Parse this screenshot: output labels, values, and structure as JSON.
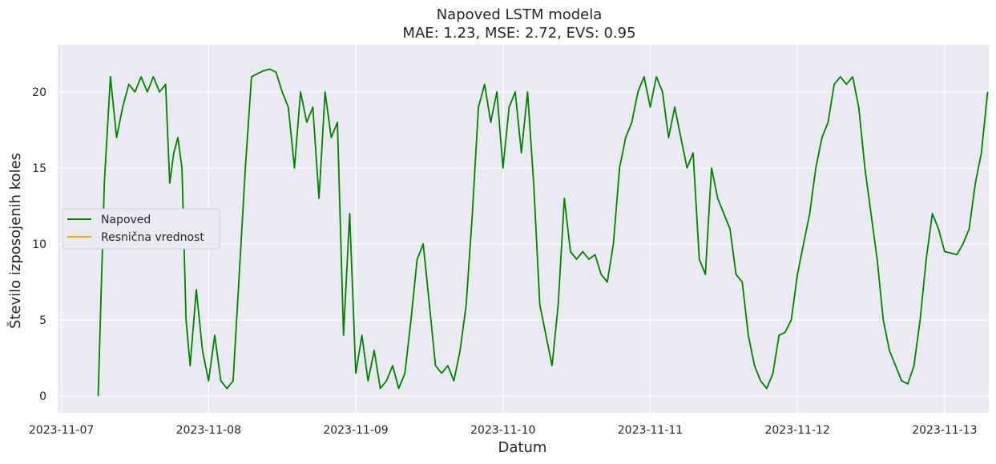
{
  "chart_data": {
    "type": "line",
    "title": "Napoved LSTM modela",
    "subtitle": "MAE: 1.23, MSE: 2.72, EVS: 0.95",
    "xlabel": "Datum",
    "ylabel": "Število izposojenih koles",
    "x_tick_labels": [
      "2023-11-07",
      "2023-11-08",
      "2023-11-09",
      "2023-11-10",
      "2023-11-11",
      "2023-11-12",
      "2023-11-13"
    ],
    "y_ticks": [
      0,
      5,
      10,
      15,
      20
    ],
    "xlim": [
      "2023-11-06 23:24",
      "2023-11-13 07:12"
    ],
    "ylim": [
      -1.1,
      23.1
    ],
    "grid": true,
    "legend_position": "center-left",
    "background_color": "#eaeaf2",
    "grid_color": "#ffffff",
    "series": [
      {
        "name": "Napoved",
        "color": "#008000",
        "points": [
          [
            "2023-11-07 06:00",
            0
          ],
          [
            "2023-11-07 07:00",
            14
          ],
          [
            "2023-11-07 08:00",
            21
          ],
          [
            "2023-11-07 09:00",
            17
          ],
          [
            "2023-11-07 10:00",
            19
          ],
          [
            "2023-11-07 11:00",
            20.5
          ],
          [
            "2023-11-07 12:00",
            20
          ],
          [
            "2023-11-07 13:00",
            21
          ],
          [
            "2023-11-07 14:00",
            20
          ],
          [
            "2023-11-07 15:00",
            21
          ],
          [
            "2023-11-07 16:00",
            20
          ],
          [
            "2023-11-07 17:00",
            20.5
          ],
          [
            "2023-11-07 17:40",
            14
          ],
          [
            "2023-11-07 18:20",
            16
          ],
          [
            "2023-11-07 19:00",
            17
          ],
          [
            "2023-11-07 19:40",
            15
          ],
          [
            "2023-11-07 20:20",
            5
          ],
          [
            "2023-11-07 21:00",
            2
          ],
          [
            "2023-11-07 22:00",
            7
          ],
          [
            "2023-11-07 23:00",
            3
          ],
          [
            "2023-11-08 00:00",
            1
          ],
          [
            "2023-11-08 01:00",
            4
          ],
          [
            "2023-11-08 02:00",
            1
          ],
          [
            "2023-11-08 03:00",
            0.5
          ],
          [
            "2023-11-08 04:00",
            1
          ],
          [
            "2023-11-08 05:00",
            8
          ],
          [
            "2023-11-08 06:00",
            15
          ],
          [
            "2023-11-08 07:00",
            21
          ],
          [
            "2023-11-08 08:00",
            21.2
          ],
          [
            "2023-11-08 09:00",
            21.4
          ],
          [
            "2023-11-08 10:00",
            21.5
          ],
          [
            "2023-11-08 11:00",
            21.3
          ],
          [
            "2023-11-08 12:00",
            20
          ],
          [
            "2023-11-08 13:00",
            19
          ],
          [
            "2023-11-08 14:00",
            15
          ],
          [
            "2023-11-08 15:00",
            20
          ],
          [
            "2023-11-08 16:00",
            18
          ],
          [
            "2023-11-08 17:00",
            19
          ],
          [
            "2023-11-08 18:00",
            13
          ],
          [
            "2023-11-08 19:00",
            20
          ],
          [
            "2023-11-08 20:00",
            17
          ],
          [
            "2023-11-08 21:00",
            18
          ],
          [
            "2023-11-08 22:00",
            4
          ],
          [
            "2023-11-08 23:00",
            12
          ],
          [
            "2023-11-09 00:00",
            1.5
          ],
          [
            "2023-11-09 01:00",
            4
          ],
          [
            "2023-11-09 02:00",
            1
          ],
          [
            "2023-11-09 03:00",
            3
          ],
          [
            "2023-11-09 04:00",
            0.5
          ],
          [
            "2023-11-09 05:00",
            1
          ],
          [
            "2023-11-09 06:00",
            2
          ],
          [
            "2023-11-09 07:00",
            0.5
          ],
          [
            "2023-11-09 08:00",
            1.5
          ],
          [
            "2023-11-09 09:00",
            5
          ],
          [
            "2023-11-09 10:00",
            9
          ],
          [
            "2023-11-09 11:00",
            10
          ],
          [
            "2023-11-09 12:00",
            6
          ],
          [
            "2023-11-09 13:00",
            2
          ],
          [
            "2023-11-09 14:00",
            1.5
          ],
          [
            "2023-11-09 15:00",
            2
          ],
          [
            "2023-11-09 16:00",
            1
          ],
          [
            "2023-11-09 17:00",
            3
          ],
          [
            "2023-11-09 18:00",
            6
          ],
          [
            "2023-11-09 19:00",
            12
          ],
          [
            "2023-11-09 20:00",
            19
          ],
          [
            "2023-11-09 21:00",
            20.5
          ],
          [
            "2023-11-09 22:00",
            18
          ],
          [
            "2023-11-09 23:00",
            20
          ],
          [
            "2023-11-10 00:00",
            15
          ],
          [
            "2023-11-10 01:00",
            19
          ],
          [
            "2023-11-10 02:00",
            20
          ],
          [
            "2023-11-10 03:00",
            16
          ],
          [
            "2023-11-10 04:00",
            20
          ],
          [
            "2023-11-10 05:00",
            14
          ],
          [
            "2023-11-10 06:00",
            6
          ],
          [
            "2023-11-10 07:00",
            4
          ],
          [
            "2023-11-10 08:00",
            2
          ],
          [
            "2023-11-10 09:00",
            6
          ],
          [
            "2023-11-10 10:00",
            13
          ],
          [
            "2023-11-10 11:00",
            9.5
          ],
          [
            "2023-11-10 12:00",
            9
          ],
          [
            "2023-11-10 13:00",
            9.5
          ],
          [
            "2023-11-10 14:00",
            9
          ],
          [
            "2023-11-10 15:00",
            9.3
          ],
          [
            "2023-11-10 16:00",
            8
          ],
          [
            "2023-11-10 17:00",
            7.5
          ],
          [
            "2023-11-10 18:00",
            10
          ],
          [
            "2023-11-10 19:00",
            15
          ],
          [
            "2023-11-10 20:00",
            17
          ],
          [
            "2023-11-10 21:00",
            18
          ],
          [
            "2023-11-10 22:00",
            20
          ],
          [
            "2023-11-10 23:00",
            21
          ],
          [
            "2023-11-11 00:00",
            19
          ],
          [
            "2023-11-11 01:00",
            21
          ],
          [
            "2023-11-11 02:00",
            20
          ],
          [
            "2023-11-11 03:00",
            17
          ],
          [
            "2023-11-11 04:00",
            19
          ],
          [
            "2023-11-11 05:00",
            17
          ],
          [
            "2023-11-11 06:00",
            15
          ],
          [
            "2023-11-11 07:00",
            16
          ],
          [
            "2023-11-11 08:00",
            9
          ],
          [
            "2023-11-11 09:00",
            8
          ],
          [
            "2023-11-11 10:00",
            15
          ],
          [
            "2023-11-11 11:00",
            13
          ],
          [
            "2023-11-11 12:00",
            12
          ],
          [
            "2023-11-11 13:00",
            11
          ],
          [
            "2023-11-11 14:00",
            8
          ],
          [
            "2023-11-11 15:00",
            7.5
          ],
          [
            "2023-11-11 16:00",
            4
          ],
          [
            "2023-11-11 17:00",
            2
          ],
          [
            "2023-11-11 18:00",
            1
          ],
          [
            "2023-11-11 19:00",
            0.5
          ],
          [
            "2023-11-11 20:00",
            1.5
          ],
          [
            "2023-11-11 21:00",
            4
          ],
          [
            "2023-11-11 22:00",
            4.2
          ],
          [
            "2023-11-11 23:00",
            5
          ],
          [
            "2023-11-12 00:00",
            8
          ],
          [
            "2023-11-12 01:00",
            10
          ],
          [
            "2023-11-12 02:00",
            12
          ],
          [
            "2023-11-12 03:00",
            15
          ],
          [
            "2023-11-12 04:00",
            17
          ],
          [
            "2023-11-12 05:00",
            18
          ],
          [
            "2023-11-12 06:00",
            20.5
          ],
          [
            "2023-11-12 07:00",
            21
          ],
          [
            "2023-11-12 08:00",
            20.5
          ],
          [
            "2023-11-12 09:00",
            21
          ],
          [
            "2023-11-12 10:00",
            19
          ],
          [
            "2023-11-12 11:00",
            15
          ],
          [
            "2023-11-12 12:00",
            12
          ],
          [
            "2023-11-12 13:00",
            9
          ],
          [
            "2023-11-12 14:00",
            5
          ],
          [
            "2023-11-12 15:00",
            3
          ],
          [
            "2023-11-12 16:00",
            2
          ],
          [
            "2023-11-12 17:00",
            1
          ],
          [
            "2023-11-12 18:00",
            0.8
          ],
          [
            "2023-11-12 19:00",
            2
          ],
          [
            "2023-11-12 20:00",
            5
          ],
          [
            "2023-11-12 21:00",
            9
          ],
          [
            "2023-11-12 22:00",
            12
          ],
          [
            "2023-11-12 23:00",
            11
          ],
          [
            "2023-11-13 00:00",
            9.5
          ],
          [
            "2023-11-13 01:00",
            9.4
          ],
          [
            "2023-11-13 02:00",
            9.3
          ],
          [
            "2023-11-13 03:00",
            10
          ],
          [
            "2023-11-13 04:00",
            11
          ],
          [
            "2023-11-13 05:00",
            14
          ],
          [
            "2023-11-13 06:00",
            16
          ],
          [
            "2023-11-13 07:00",
            20
          ]
        ]
      },
      {
        "name": "Resnična vrednost",
        "color": "#ffa500",
        "points": []
      }
    ]
  }
}
